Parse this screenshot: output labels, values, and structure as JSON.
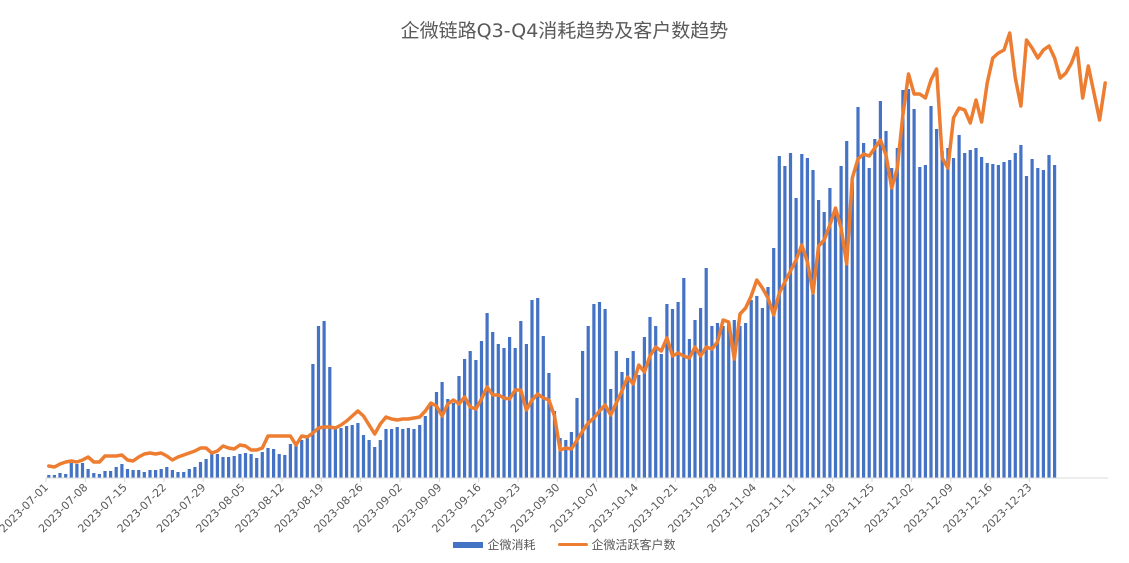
{
  "title": "企微链路Q3-Q4消耗趋势及客户数趋势",
  "legend": [
    {
      "label": "企微消耗",
      "type": "bar",
      "color": "#4472c4"
    },
    {
      "label": "企微活跃客户数",
      "type": "line",
      "color": "#ed7d31"
    }
  ],
  "colors": {
    "bar": "#4472c4",
    "line": "#ed7d31",
    "axis": "#d9d9d9",
    "text": "#595959"
  },
  "chart_data": {
    "type": "bar+line",
    "title": "企微链路Q3-Q4消耗趋势及客户数趋势",
    "xlabel": "",
    "ylabel": "",
    "grid": false,
    "legend_position": "bottom",
    "note": "No y-axis shown; values are relative heights (pixels above baseline) estimated from the image.",
    "x_start": "2023-07-01",
    "x_end": "2023-12-24",
    "tick_labels": [
      "2023-07-01",
      "2023-07-08",
      "2023-07-15",
      "2023-07-22",
      "2023-07-29",
      "2023-08-05",
      "2023-08-12",
      "2023-08-19",
      "2023-08-26",
      "2023-09-02",
      "2023-09-09",
      "2023-09-16",
      "2023-09-23",
      "2023-09-30",
      "2023-10-07",
      "2023-10-14",
      "2023-10-21",
      "2023-10-28",
      "2023-11-04",
      "2023-11-11",
      "2023-11-18",
      "2023-11-25",
      "2023-12-02",
      "2023-12-09",
      "2023-12-16",
      "2023-12-23"
    ],
    "series": [
      {
        "name": "企微消耗",
        "type": "bar",
        "values": [
          3,
          3,
          5,
          4,
          15,
          14,
          15,
          9,
          5,
          4,
          7,
          7,
          11,
          14,
          9,
          8,
          8,
          6,
          8,
          8,
          9,
          11,
          8,
          6,
          6,
          9,
          11,
          16,
          19,
          24,
          24,
          21,
          21,
          22,
          24,
          25,
          24,
          20,
          26,
          30,
          29,
          24,
          23,
          34,
          34,
          38,
          40,
          114,
          152,
          157,
          111,
          52,
          50,
          52,
          53,
          55,
          43,
          38,
          31,
          38,
          49,
          49,
          51,
          49,
          50,
          49,
          53,
          62,
          74,
          86,
          96,
          79,
          75,
          102,
          119,
          127,
          118,
          137,
          165,
          146,
          134,
          130,
          141,
          130,
          157,
          134,
          178,
          180,
          142,
          105,
          67,
          40,
          38,
          46,
          80,
          127,
          152,
          174,
          176,
          169,
          89,
          127,
          106,
          120,
          127,
          103,
          141,
          161,
          152,
          124,
          174,
          169,
          176,
          200,
          139,
          158,
          170,
          210,
          152,
          155,
          152,
          156,
          158,
          152,
          155,
          178,
          182,
          170,
          191,
          230,
          322,
          312,
          325,
          280,
          324,
          320,
          308,
          278,
          266,
          290,
          267,
          312,
          337,
          296,
          371,
          335,
          310,
          339,
          377,
          347,
          310,
          330,
          388,
          389,
          369,
          311,
          313,
          372,
          349,
          327,
          330,
          320,
          343,
          325,
          328,
          330,
          321,
          315,
          314,
          313,
          316,
          318,
          325,
          333,
          302,
          319,
          310,
          308,
          323,
          313
        ]
      },
      {
        "name": "企微活跃客户数",
        "type": "line",
        "values": [
          12,
          11,
          14,
          16,
          17,
          16,
          18,
          21,
          16,
          16,
          22,
          22,
          22,
          23,
          18,
          17,
          21,
          24,
          25,
          24,
          25,
          22,
          18,
          21,
          23,
          25,
          27,
          30,
          30,
          25,
          27,
          32,
          30,
          29,
          33,
          32,
          28,
          28,
          30,
          42,
          42,
          42,
          42,
          42,
          33,
          42,
          41,
          45,
          50,
          51,
          51,
          50,
          53,
          57,
          62,
          67,
          62,
          53,
          44,
          54,
          61,
          59,
          58,
          59,
          59,
          60,
          61,
          67,
          75,
          72,
          62,
          74,
          78,
          74,
          81,
          71,
          69,
          79,
          91,
          83,
          83,
          80,
          79,
          88,
          88,
          68,
          78,
          84,
          80,
          78,
          62,
          28,
          30,
          29,
          38,
          47,
          55,
          60,
          67,
          73,
          63,
          75,
          87,
          101,
          94,
          113,
          106,
          122,
          131,
          127,
          140,
          122,
          125,
          122,
          120,
          131,
          122,
          131,
          129,
          136,
          158,
          156,
          119,
          164,
          170,
          182,
          198,
          190,
          180,
          163,
          185,
          196,
          207,
          218,
          233,
          216,
          185,
          232,
          238,
          253,
          270,
          250,
          214,
          300,
          319,
          324,
          322,
          330,
          338,
          323,
          290,
          310,
          363,
          404,
          384,
          384,
          380,
          398,
          409,
          320,
          310,
          360,
          370,
          368,
          355,
          378,
          356,
          395,
          420,
          425,
          428,
          445,
          400,
          372,
          438,
          430,
          420,
          428,
          432,
          420,
          400,
          405,
          415,
          430,
          380,
          412,
          385,
          358,
          395
        ]
      }
    ]
  }
}
